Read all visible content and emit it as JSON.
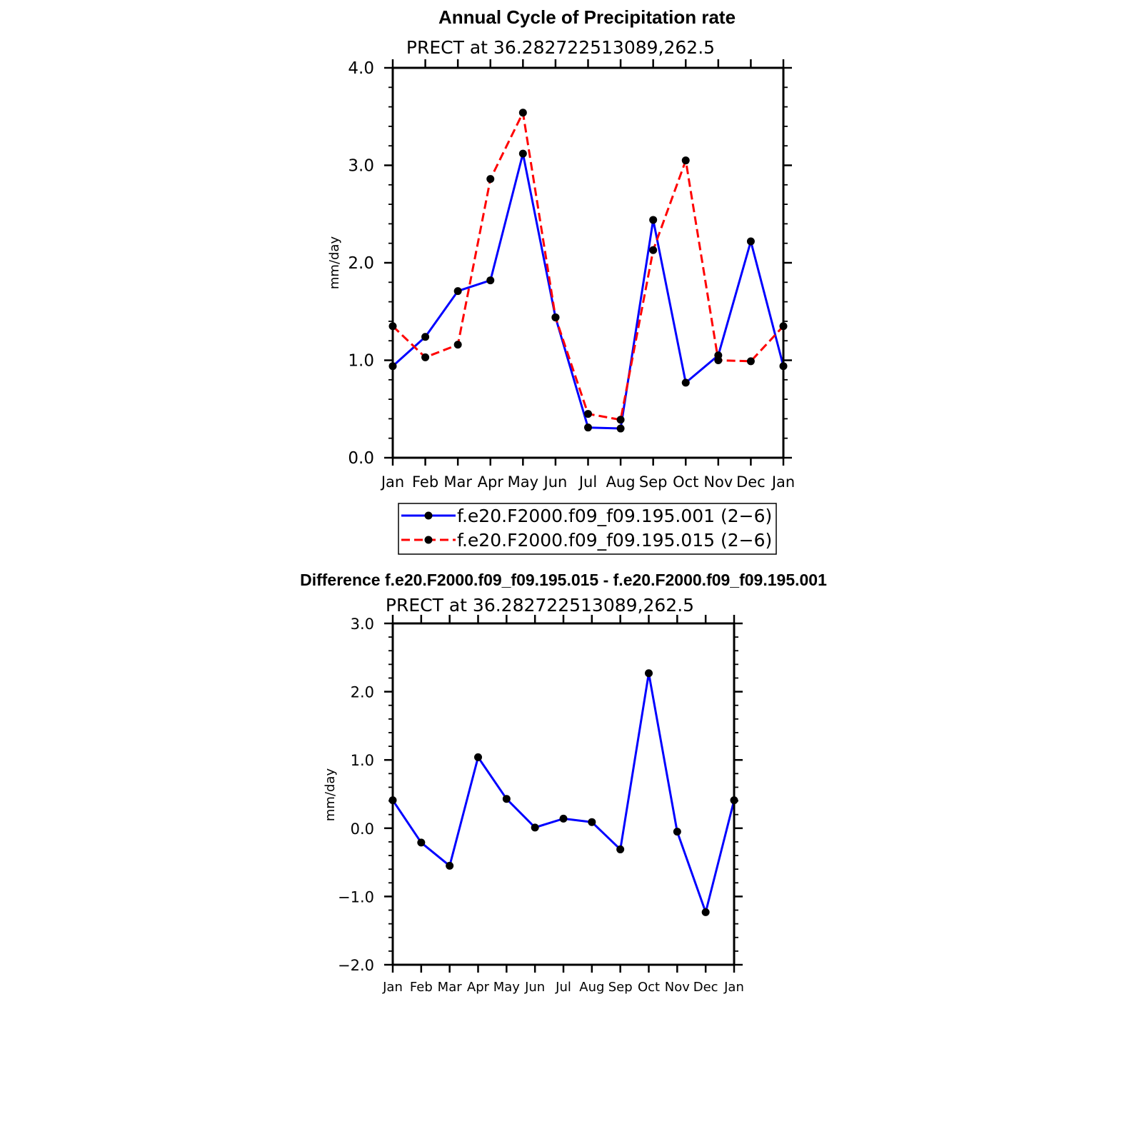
{
  "chart_data": [
    {
      "type": "line",
      "title": "Annual Cycle of Precipitation rate",
      "subtitle": "PRECT at 36.282722513089,262.5",
      "xlabel": "",
      "ylabel": "mm/day",
      "categories": [
        "Jan",
        "Feb",
        "Mar",
        "Apr",
        "May",
        "Jun",
        "Jul",
        "Aug",
        "Sep",
        "Oct",
        "Nov",
        "Dec",
        "Jan"
      ],
      "ylim": [
        0.0,
        4.0
      ],
      "yticks": [
        "0.0",
        "1.0",
        "2.0",
        "3.0",
        "4.0"
      ],
      "ytick_values": [
        0,
        1,
        2,
        3,
        4
      ],
      "series": [
        {
          "name": "f.e20.F2000.f09_f09.195.001 (2−6)",
          "color": "#0000ff",
          "dash": "solid",
          "values": [
            0.94,
            1.24,
            1.71,
            1.82,
            3.12,
            1.44,
            0.31,
            0.3,
            2.44,
            0.77,
            1.05,
            2.22,
            0.94
          ]
        },
        {
          "name": "f.e20.F2000.f09_f09.195.015 (2−6)",
          "color": "#ff0000",
          "dash": "dashed",
          "values": [
            1.35,
            1.03,
            1.16,
            2.86,
            3.54,
            1.44,
            0.45,
            0.39,
            2.13,
            3.05,
            1.0,
            0.99,
            1.35
          ]
        }
      ],
      "legend_position": "bottom"
    },
    {
      "type": "line",
      "title": "Difference f.e20.F2000.f09_f09.195.015 - f.e20.F2000.f09_f09.195.001",
      "subtitle": "PRECT at 36.282722513089,262.5",
      "xlabel": "",
      "ylabel": "mm/day",
      "categories": [
        "Jan",
        "Feb",
        "Mar",
        "Apr",
        "May",
        "Jun",
        "Jul",
        "Aug",
        "Sep",
        "Oct",
        "Nov",
        "Dec",
        "Jan"
      ],
      "ylim": [
        -2.0,
        3.0
      ],
      "yticks": [
        "−2.0",
        "−1.0",
        "0.0",
        "1.0",
        "2.0",
        "3.0"
      ],
      "ytick_values": [
        -2,
        -1,
        0,
        1,
        2,
        3
      ],
      "series": [
        {
          "name": "Difference",
          "color": "#0000ff",
          "dash": "solid",
          "values": [
            0.41,
            -0.21,
            -0.55,
            1.04,
            0.43,
            0.01,
            0.14,
            0.09,
            -0.31,
            2.27,
            -0.05,
            -1.23,
            0.41
          ]
        }
      ]
    }
  ]
}
